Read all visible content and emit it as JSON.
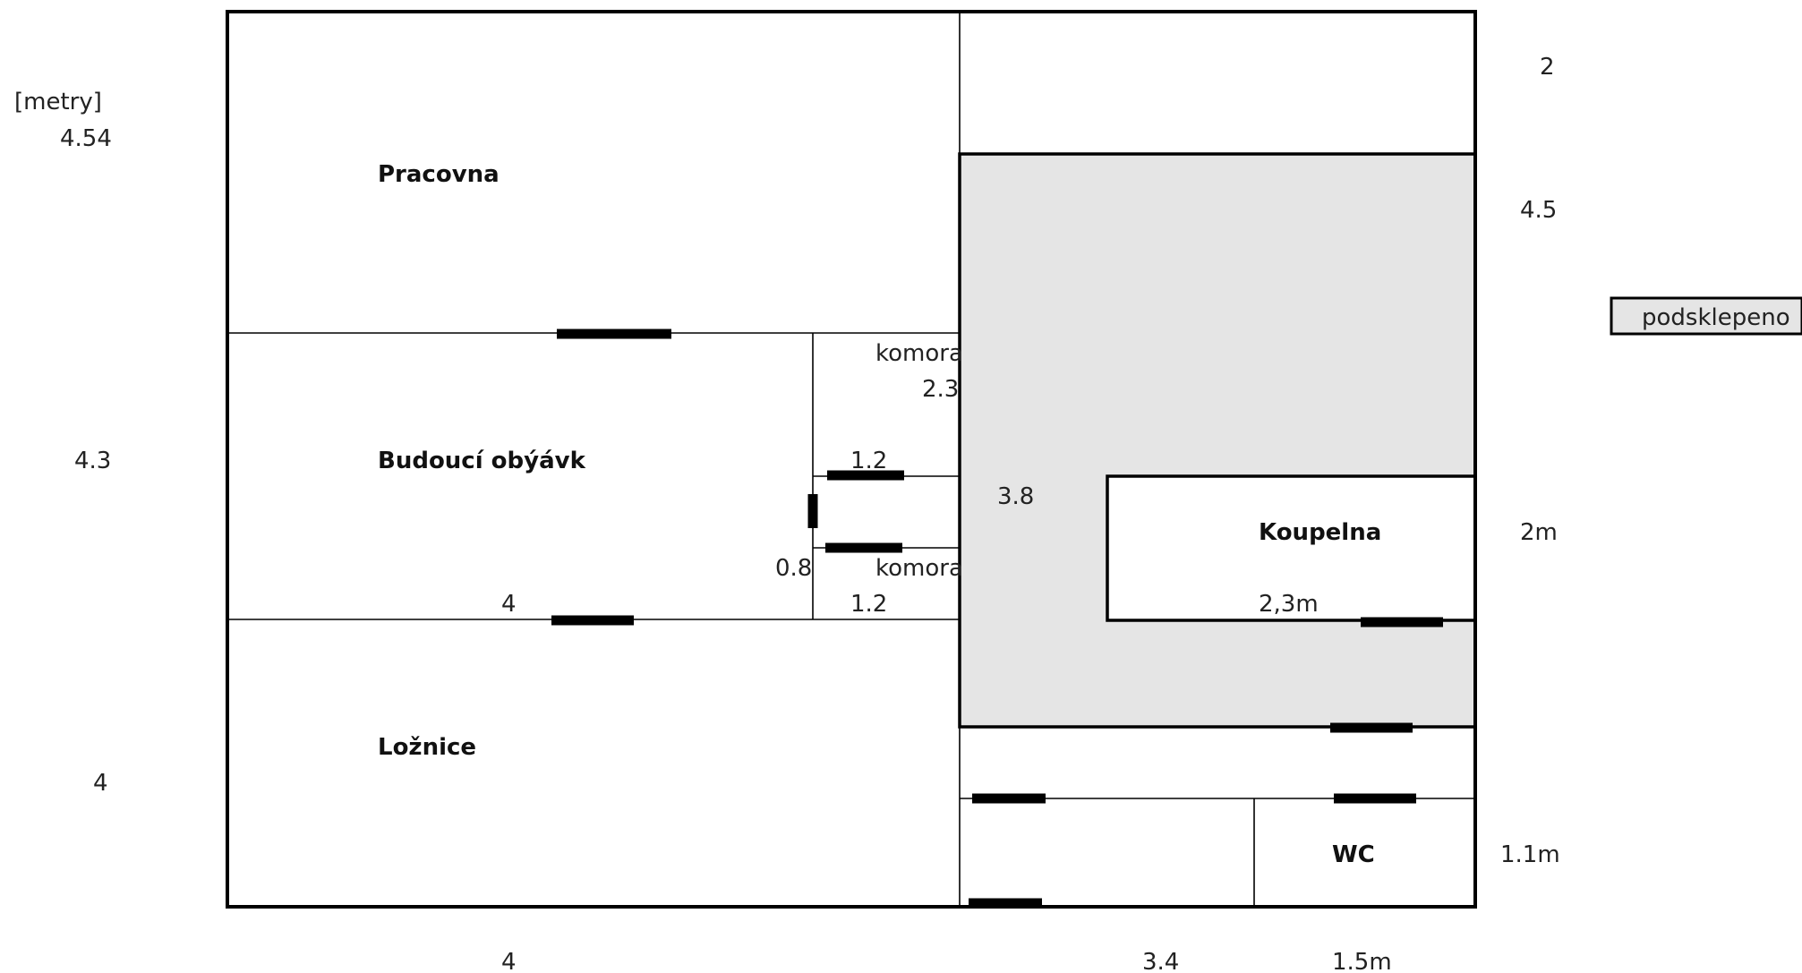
{
  "units_label": "[metry]",
  "rooms": {
    "pracovna": "Pracovna",
    "obyvak": "Budoucí obýávk",
    "loznice": "Ložnice",
    "koupelna": "Koupelna",
    "wc": "WC",
    "komora_upper": "komora",
    "komora_lower": "komora"
  },
  "legend": {
    "label": "podsklepeno",
    "color": "#e5e5e5"
  },
  "dimensions": {
    "left_top": "4.54",
    "left_middle": "4.3",
    "left_bottom": "4",
    "right_top": "2",
    "right_upper": "4.5",
    "right_middle": "2m",
    "right_bottom": "1.1m",
    "bottom_left": "4",
    "bottom_middle": "3.4",
    "bottom_right": "1.5m",
    "komora_height": "2.3",
    "komora_width_upper": "1.2",
    "komora_width_lower": "1.2",
    "komora_door": "0.8",
    "obyvak_width": "4",
    "basement_height": "3.8",
    "koupelna_width": "2,3m"
  },
  "colors": {
    "basement_fill": "#e5e5e5",
    "wall": "#000000"
  }
}
